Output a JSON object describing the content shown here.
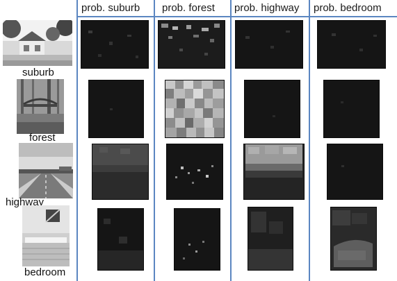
{
  "columns": [
    "prob. suburb",
    "prob. forest",
    "prob. highway",
    "prob. bedroom"
  ],
  "rows": [
    {
      "label": "suburb"
    },
    {
      "label": "forest"
    },
    {
      "label": "highway"
    },
    {
      "label": "bedroom"
    }
  ]
}
